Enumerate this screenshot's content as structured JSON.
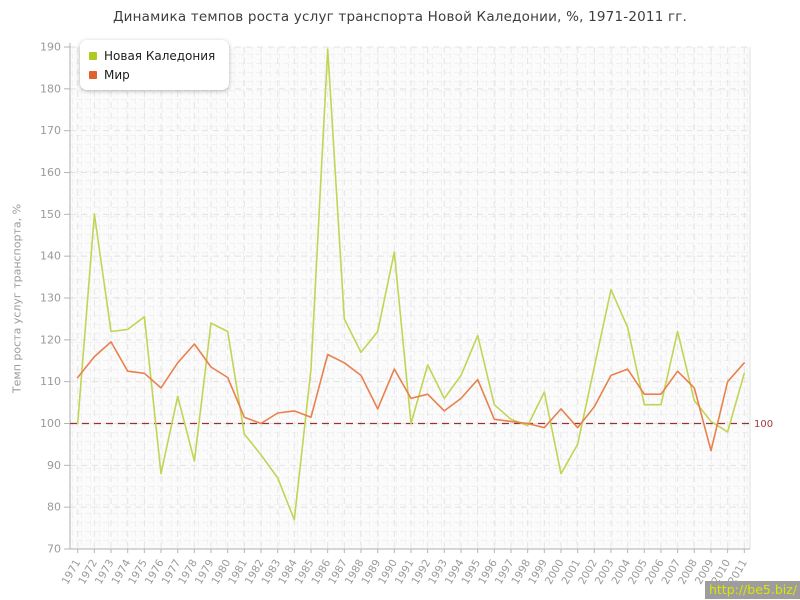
{
  "title": "Динамика темпов роста услуг транспорта Новой Каледонии, %, 1971-2011 гг.",
  "watermark": "http://be5.biz/",
  "chart_data": {
    "type": "line",
    "title": "Динамика темпов роста услуг транспорта Новой Каледонии, %, 1971-2011 гг.",
    "xlabel": "",
    "ylabel": "Темп роста услуг транспорта, %",
    "ylim": [
      70,
      190
    ],
    "ytick_step": 10,
    "grid": true,
    "legend_position": "top-left",
    "baseline": {
      "value": 100,
      "label": "100",
      "color": "#993333"
    },
    "categories": [
      1971,
      1972,
      1973,
      1974,
      1975,
      1976,
      1977,
      1978,
      1979,
      1980,
      1981,
      1982,
      1983,
      1984,
      1985,
      1986,
      1987,
      1988,
      1989,
      1990,
      1991,
      1992,
      1993,
      1994,
      1995,
      1996,
      1997,
      1998,
      1999,
      2000,
      2001,
      2002,
      2003,
      2004,
      2005,
      2006,
      2007,
      2008,
      2009,
      2010,
      2011
    ],
    "series": [
      {
        "name": "Новая Каледония",
        "marker_color": "#aecb23",
        "line_color": "#c3d455",
        "values": [
          100,
          150,
          122,
          122.5,
          125.5,
          88,
          106.5,
          91,
          124,
          122,
          97.5,
          92.5,
          87,
          77,
          113,
          189.5,
          125,
          117,
          122,
          141,
          100,
          114,
          106,
          111.5,
          121,
          104.5,
          101,
          99.5,
          107.5,
          88,
          95,
          113.5,
          132,
          123,
          104.5,
          104.5,
          122,
          105.5,
          100.5,
          98,
          112
        ]
      },
      {
        "name": "Мир",
        "marker_color": "#e0612b",
        "line_color": "#e8814e",
        "values": [
          111,
          116,
          119.5,
          112.5,
          112,
          108.5,
          114.5,
          119,
          113.5,
          111,
          101.5,
          100,
          102.5,
          103,
          101.5,
          116.5,
          114.5,
          111.5,
          103.5,
          113,
          106,
          107,
          103,
          106,
          110.5,
          101,
          100.5,
          100,
          99,
          103.5,
          99,
          104,
          111.5,
          113,
          107,
          107,
          112.5,
          108.5,
          93.5,
          110,
          114.5
        ]
      }
    ]
  }
}
